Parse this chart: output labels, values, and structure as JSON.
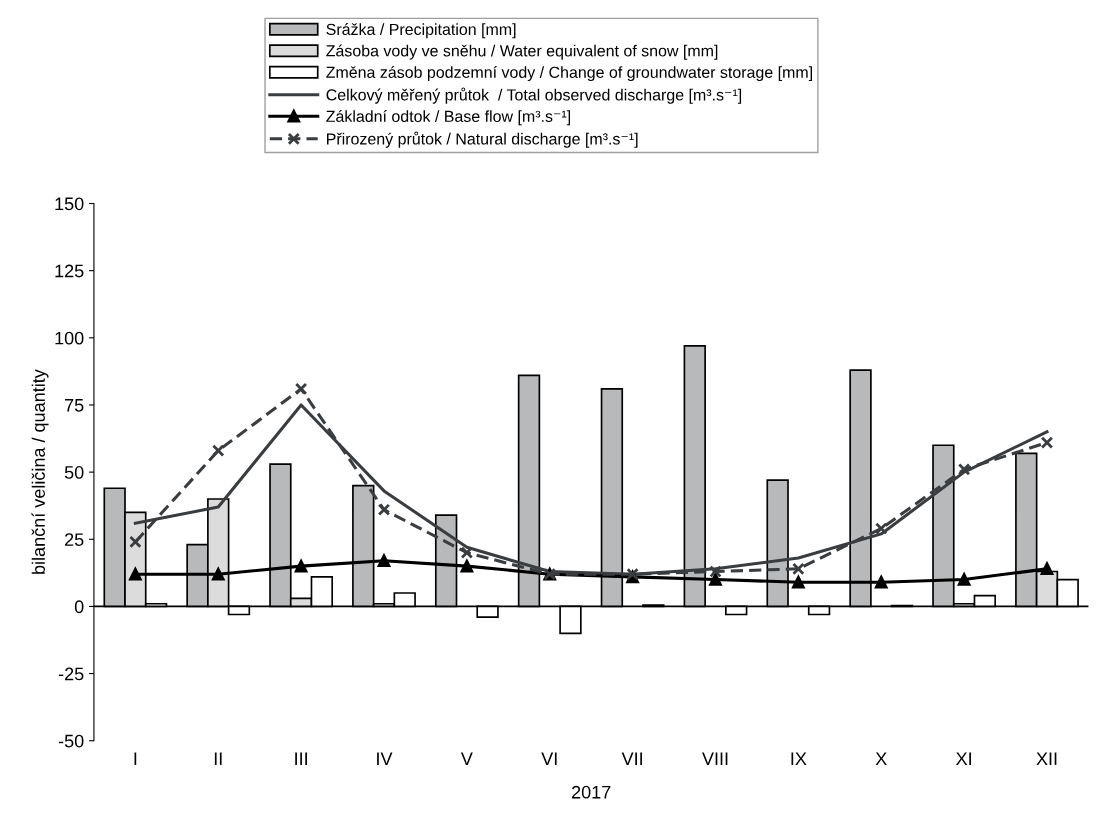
{
  "chart_data": {
    "type": "bar",
    "xlabel": "2017",
    "ylabel": "bilanční veličina / quantity",
    "categories": [
      "I",
      "II",
      "III",
      "IV",
      "V",
      "VI",
      "VII",
      "VIII",
      "IX",
      "X",
      "XI",
      "XII"
    ],
    "ylim": [
      -50,
      150
    ],
    "yticks": [
      -50,
      -25,
      0,
      25,
      50,
      75,
      100,
      125,
      150
    ],
    "grid": false,
    "legend": "top",
    "ref_lines": [
      {
        "axis": "y",
        "value": 0,
        "color": "#000000"
      }
    ],
    "series": [
      {
        "name": "Srážka / Precipitation [mm]",
        "color": "#b7b9bb",
        "values": [
          44,
          23,
          53,
          45,
          34,
          86,
          81,
          97,
          47,
          88,
          60,
          57
        ]
      },
      {
        "name": "Zásoba vody ve sněhu / Water equivalent of snow [mm]",
        "color": "#dcdcdc",
        "values": [
          35,
          40,
          3,
          1,
          null,
          null,
          null,
          null,
          null,
          null,
          1,
          13
        ]
      },
      {
        "name": "Změna zásob podzemní vody / Change of groundwater storage [mm]",
        "color": "#ffffff",
        "values": [
          1,
          -3,
          11,
          5,
          -4,
          -10,
          0.5,
          -3,
          -3,
          0.3,
          4,
          10
        ]
      },
      {
        "name": "Celkový měřený průtok  / Total observed discharge [m³.s⁻¹]",
        "type": "line",
        "color": "#3a3d40",
        "marker": "none",
        "line_style": "solid",
        "values": [
          31,
          37,
          75,
          43,
          22,
          13,
          12,
          14,
          18,
          27,
          50,
          65
        ]
      },
      {
        "name": "Základní odtok / Base flow [m³.s⁻¹]",
        "type": "line",
        "color": "#000000",
        "marker": "triangle",
        "line_style": "solid",
        "values": [
          12,
          12,
          15,
          17,
          15,
          12,
          11,
          10,
          9,
          9,
          10,
          14
        ]
      },
      {
        "name": "Přirozený průtok / Natural discharge [m³.s⁻¹]",
        "type": "line",
        "color": "#3a3d40",
        "marker": "cross",
        "line_style": "dashed",
        "values": [
          24,
          58,
          81,
          36,
          20,
          12,
          12,
          13,
          14,
          29,
          51,
          61
        ]
      }
    ]
  }
}
